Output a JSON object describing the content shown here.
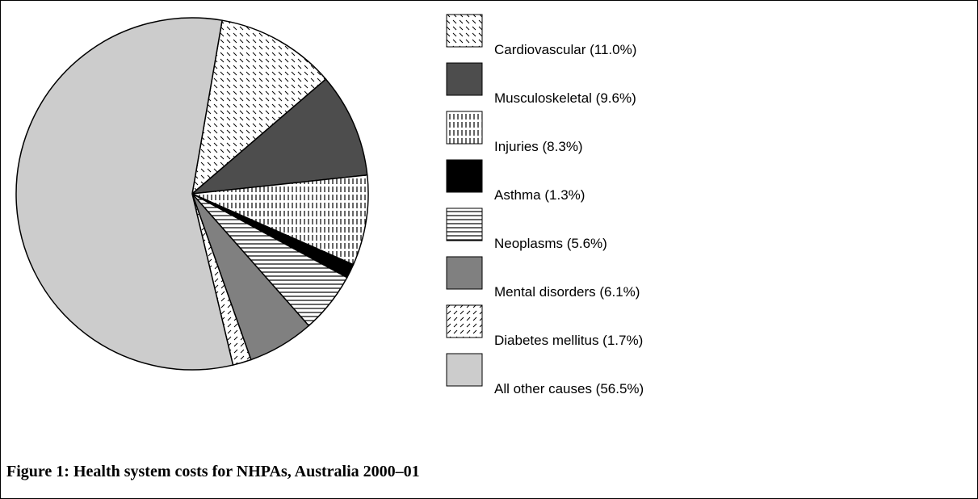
{
  "chart_data": {
    "type": "pie",
    "title": "Figure 1: Health system costs for NHPAs, Australia 2000–01",
    "categories": [
      "Cardiovascular (11.0%)",
      "Musculoskeletal (9.6%)",
      "Injuries (8.3%)",
      "Asthma (1.3%)",
      "Neoplasms (5.6%)",
      "Mental disorders (6.1%)",
      "Diabetes mellitus (1.7%)",
      "All other causes (56.5%)"
    ],
    "values": [
      11.0,
      9.6,
      8.3,
      1.3,
      5.6,
      6.1,
      1.7,
      56.5
    ],
    "colors": [
      "#ffffff",
      "#4d4d4d",
      "#ffffff",
      "#000000",
      "#ffffff",
      "#808080",
      "#ffffff",
      "#cccccc"
    ],
    "hatches": [
      "backslash",
      null,
      "vertical",
      null,
      "horizontal",
      null,
      "slash",
      null
    ]
  }
}
